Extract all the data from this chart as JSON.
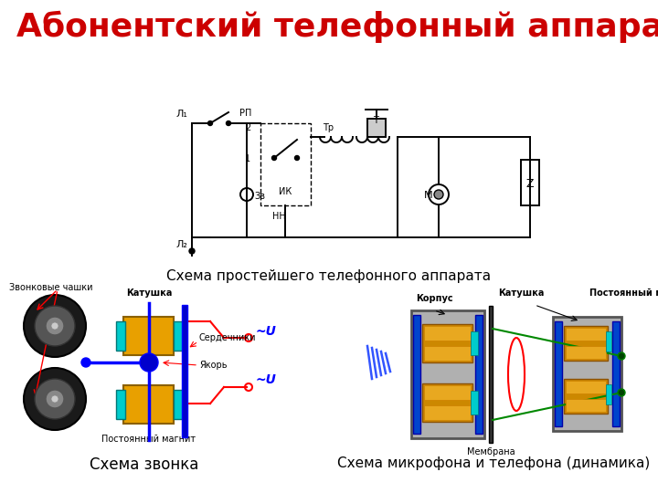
{
  "title": "Абонентский телефонный аппарат",
  "title_color": "#cc0000",
  "title_fontsize": 26,
  "bg_color": "#ffffff",
  "caption1": "Схема простейшего телефонного аппарата",
  "caption2": "Схема звонка",
  "caption3": "Схема микрофона и телефона (динамика)",
  "fig_width": 7.2,
  "fig_height": 5.4
}
